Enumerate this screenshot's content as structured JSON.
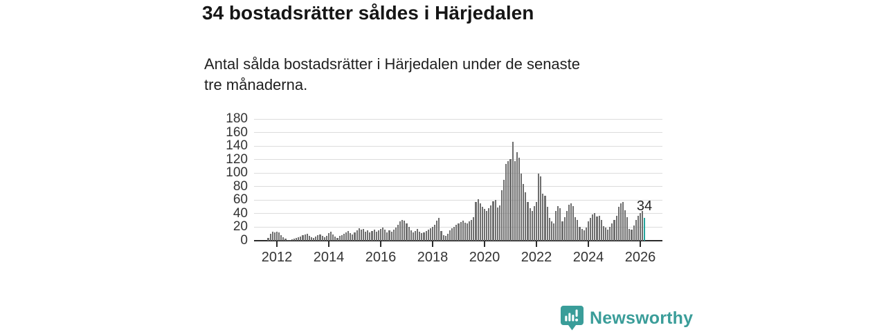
{
  "header": {
    "title": "34 bostadsrätter såldes i Härjedalen",
    "subtitle_lines": [
      "Antal sålda bostadsrätter i Härjedalen under de senaste",
      "tre månaderna."
    ]
  },
  "chart_data": {
    "type": "bar",
    "title": "34 bostadsrätter såldes i Härjedalen",
    "subtitle": "Antal sålda bostadsrätter i Härjedalen under de senaste tre månaderna.",
    "xlabel": "",
    "ylabel": "",
    "ylim": [
      0,
      180
    ],
    "yticks": [
      0,
      20,
      40,
      60,
      80,
      100,
      120,
      140,
      160,
      180
    ],
    "xticks": [
      2012,
      2014,
      2016,
      2018,
      2020,
      2022,
      2024,
      2026
    ],
    "grid": "horizontal",
    "start_month": "2011-09",
    "end_month": "2026-03",
    "values": [
      4,
      10,
      13,
      12,
      13,
      12,
      8,
      5,
      3,
      1,
      1,
      2,
      3,
      4,
      5,
      6,
      8,
      9,
      10,
      7,
      5,
      4,
      6,
      8,
      9,
      7,
      5,
      7,
      11,
      13,
      9,
      6,
      4,
      7,
      8,
      10,
      12,
      14,
      11,
      9,
      12,
      15,
      18,
      16,
      17,
      13,
      15,
      12,
      14,
      16,
      13,
      15,
      17,
      19,
      16,
      12,
      15,
      13,
      16,
      19,
      24,
      29,
      31,
      30,
      26,
      21,
      15,
      12,
      14,
      17,
      13,
      11,
      12,
      14,
      16,
      18,
      20,
      24,
      30,
      34,
      14,
      8,
      7,
      10,
      15,
      18,
      21,
      24,
      26,
      28,
      30,
      27,
      26,
      29,
      31,
      35,
      57,
      62,
      55,
      50,
      47,
      44,
      48,
      52,
      58,
      60,
      49,
      52,
      75,
      90,
      114,
      118,
      121,
      147,
      118,
      131,
      123,
      99,
      84,
      72,
      57,
      48,
      44,
      51,
      57,
      99,
      95,
      70,
      67,
      50,
      34,
      29,
      26,
      44,
      51,
      48,
      29,
      35,
      44,
      53,
      55,
      51,
      35,
      31,
      20,
      17,
      15,
      19,
      29,
      34,
      39,
      41,
      36,
      37,
      31,
      22,
      19,
      16,
      21,
      26,
      31,
      37,
      50,
      55,
      57,
      45,
      35,
      17,
      16,
      23,
      31,
      37,
      41,
      44,
      34
    ],
    "bar_color": "#6e6e6e",
    "highlight": {
      "position": "last",
      "value": 34,
      "label": "34",
      "color": "#24a49c"
    }
  },
  "footer": {
    "brand": "Newsworthy",
    "brand_color": "#3a9d99"
  }
}
